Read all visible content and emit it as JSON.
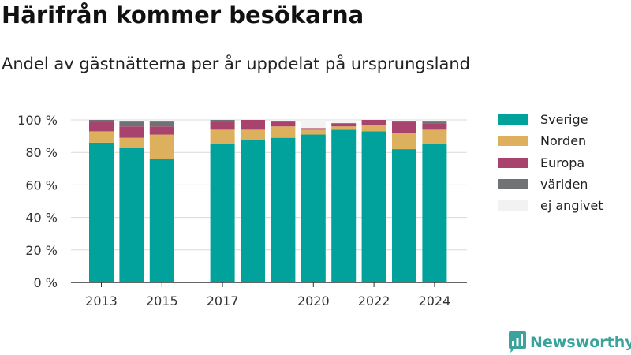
{
  "header": {
    "title": "Härifrån kommer besökarna",
    "subtitle": "Andel av gästnätterna per år uppdelat på ursprungsland"
  },
  "chart_data": {
    "type": "bar",
    "stacked": true,
    "categories": [
      "2013",
      "2014",
      "2015",
      "2016",
      "2017",
      "2018",
      "2019",
      "2020",
      "2021",
      "2022",
      "2023",
      "2024"
    ],
    "x_tick_labels": [
      "2013",
      "2015",
      "2017",
      "2020",
      "2022",
      "2024"
    ],
    "y_tick_labels": [
      "0 %",
      "20 %",
      "40 %",
      "60 %",
      "80 %",
      "100 %"
    ],
    "ylim": [
      0,
      100
    ],
    "grid": true,
    "legend_position": "right",
    "series": [
      {
        "name": "Sverige",
        "color": "#00a29b",
        "values": [
          86,
          83,
          76,
          null,
          85,
          88,
          89,
          91,
          94,
          93,
          82,
          85
        ]
      },
      {
        "name": "Norden",
        "color": "#dcb05c",
        "values": [
          7,
          6,
          15,
          null,
          9,
          6,
          7,
          3,
          2,
          4,
          10,
          9
        ]
      },
      {
        "name": "Europa",
        "color": "#a8436d",
        "values": [
          6,
          7,
          5,
          null,
          5,
          6,
          3,
          1,
          2,
          3,
          7,
          4
        ]
      },
      {
        "name": "världen",
        "color": "#707274",
        "values": [
          1,
          3,
          3,
          null,
          1,
          0,
          0,
          0,
          0,
          0,
          0,
          1
        ]
      },
      {
        "name": "ej angivet",
        "color": "#f2f2f2",
        "values": [
          0,
          1,
          1,
          null,
          0,
          0,
          1,
          5,
          2,
          0,
          1,
          1
        ]
      }
    ]
  },
  "brand": {
    "name": "Newsworthy",
    "color": "#3aa39b"
  }
}
